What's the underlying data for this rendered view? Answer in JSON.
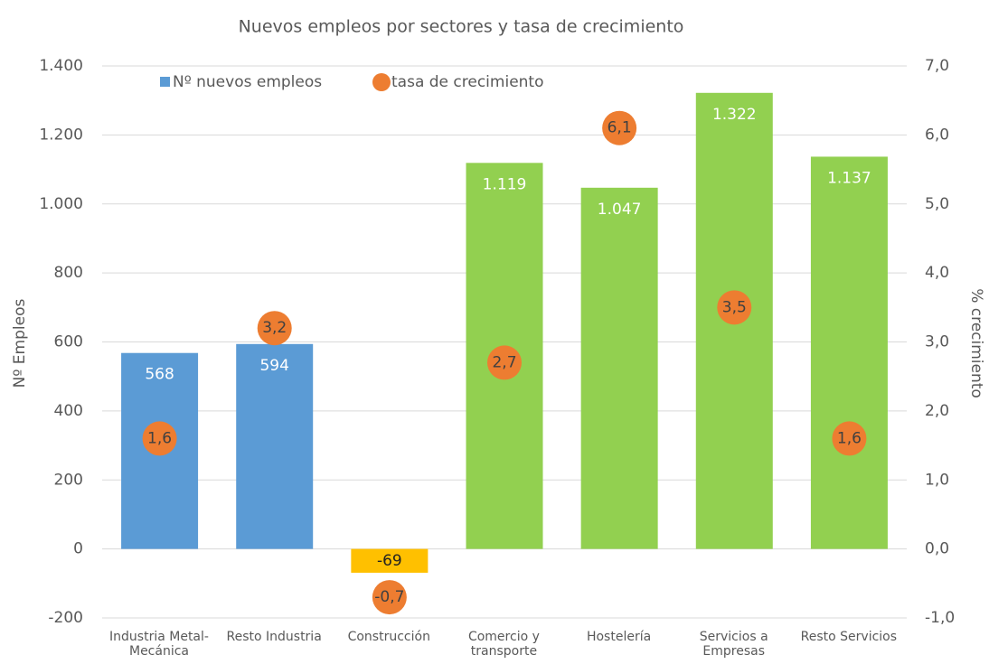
{
  "chart_data": {
    "type": "bar",
    "title": "Nuevos empleos por sectores y tasa de crecimiento",
    "y_label": "Nº Empleos",
    "y2_label": "% crecimiento",
    "categories": [
      "Industria Metal-Mecánica",
      "Resto Industria",
      "Construcción",
      "Comercio y transporte",
      "Hostelería",
      "Servicios a Empresas",
      "Resto Servicios"
    ],
    "series": [
      {
        "name": "Nº nuevos empleos",
        "type": "bar",
        "color": "#5b9bd5",
        "colors": [
          "#5b9bd5",
          "#5b9bd5",
          "#ffc000",
          "#92d050",
          "#92d050",
          "#92d050",
          "#92d050"
        ],
        "values": [
          568,
          594,
          -69,
          1119,
          1047,
          1322,
          1137
        ],
        "value_labels": [
          "568",
          "594",
          "-69",
          "1.119",
          "1.047",
          "1.322",
          "1.137"
        ]
      },
      {
        "name": "tasa de crecimiento",
        "type": "scatter",
        "axis": "y2",
        "color": "#ed7d31",
        "values": [
          1.6,
          3.2,
          -0.7,
          2.7,
          6.1,
          3.5,
          1.6
        ],
        "value_labels": [
          "1,6",
          "3,2",
          "-0,7",
          "2,7",
          "6,1",
          "3,5",
          "1,6"
        ]
      }
    ],
    "ylim": [
      -200,
      1400
    ],
    "yticks": [
      -200,
      0,
      200,
      400,
      600,
      800,
      {
        "value": 1000,
        "label": "1.000"
      },
      {
        "value": 1200,
        "label": "1.200"
      },
      {
        "value": 1400,
        "label": "1.400"
      }
    ],
    "y2lim": [
      -1,
      7
    ],
    "y2ticks": [
      {
        "value": -1,
        "label": "-1,0"
      },
      {
        "value": 0,
        "label": "0,0"
      },
      {
        "value": 1,
        "label": "1,0"
      },
      {
        "value": 2,
        "label": "2,0"
      },
      {
        "value": 3,
        "label": "3,0"
      },
      {
        "value": 4,
        "label": "4,0"
      },
      {
        "value": 5,
        "label": "5,0"
      },
      {
        "value": 6,
        "label": "6,0"
      },
      {
        "value": 7,
        "label": "7,0"
      }
    ],
    "grid": true,
    "legend": "top"
  }
}
